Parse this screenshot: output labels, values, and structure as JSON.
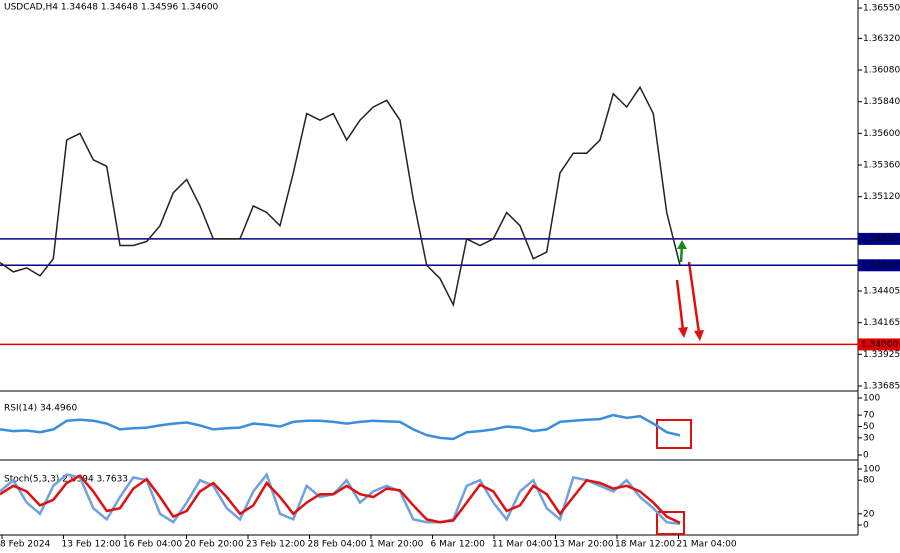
{
  "chart_data": [
    {
      "type": "line",
      "title": "USDCAD,H4 1.34648 1.34648 1.34596 1.34600",
      "ylim": [
        1.33647,
        1.36611
      ],
      "yticks": [
        {
          "value": 1.3655,
          "label": "1.36550"
        },
        {
          "value": 1.3632,
          "label": "1.36320"
        },
        {
          "value": 1.3608,
          "label": "1.36080"
        },
        {
          "value": 1.3584,
          "label": "1.35840"
        },
        {
          "value": 1.356,
          "label": "1.35600"
        },
        {
          "value": 1.3536,
          "label": "1.35360"
        },
        {
          "value": 1.3512,
          "label": "1.35120"
        },
        {
          "value": 1.34405,
          "label": "1.34405"
        },
        {
          "value": 1.34165,
          "label": "1.34165"
        },
        {
          "value": 1.33925,
          "label": "1.33925"
        },
        {
          "value": 1.33685,
          "label": "1.33685"
        }
      ],
      "levels": [
        {
          "value": 1.348,
          "label": "1.34800",
          "color": "#00008b"
        },
        {
          "value": 1.346,
          "label": "1.34600",
          "color": "#00008b"
        },
        {
          "value": 1.34,
          "label": "1.34000",
          "color": "#e00000"
        }
      ],
      "series": [
        {
          "color": "#222222",
          "values": [
            1.3462,
            1.3455,
            1.3458,
            1.3452,
            1.3465,
            1.3555,
            1.356,
            1.354,
            1.3535,
            1.3475,
            1.3475,
            1.3478,
            1.349,
            1.3515,
            1.3525,
            1.3505,
            1.348,
            1.348,
            1.348,
            1.3505,
            1.35,
            1.349,
            1.353,
            1.3575,
            1.357,
            1.3575,
            1.3555,
            1.357,
            1.358,
            1.3585,
            1.357,
            1.351,
            1.346,
            1.345,
            1.343,
            1.348,
            1.3475,
            1.348,
            1.35,
            1.349,
            1.3465,
            1.347,
            1.353,
            1.3545,
            1.3545,
            1.3555,
            1.359,
            1.358,
            1.3595,
            1.3575,
            1.35,
            1.346
          ]
        }
      ]
    },
    {
      "type": "line",
      "title": "RSI(14) 34.4960",
      "ylim": [
        0,
        100
      ],
      "yticks": [
        100,
        70,
        50,
        30,
        0
      ],
      "series": [
        {
          "color": "#3a8fdc",
          "values": [
            45,
            42,
            43,
            40,
            45,
            60,
            62,
            60,
            55,
            45,
            47,
            48,
            52,
            55,
            57,
            52,
            45,
            47,
            48,
            55,
            53,
            50,
            58,
            60,
            60,
            58,
            55,
            58,
            60,
            59,
            58,
            45,
            35,
            30,
            28,
            40,
            42,
            45,
            50,
            48,
            42,
            45,
            58,
            60,
            62,
            63,
            70,
            65,
            68,
            55,
            40,
            34.496
          ]
        }
      ]
    },
    {
      "type": "line",
      "title": "Stoch(5,3,3) 2.0394 3.7633",
      "ylim": [
        0,
        100
      ],
      "yticks": [
        100,
        80,
        20,
        0
      ],
      "xtick_labels": [
        "8 Feb 2024",
        "13 Feb 12:00",
        "16 Feb 04:00",
        "20 Feb 20:00",
        "23 Feb 12:00",
        "28 Feb 04:00",
        "1 Mar 20:00",
        "6 Mar 12:00",
        "11 Mar 04:00",
        "13 Mar 20:00",
        "18 Mar 12:00",
        "21 Mar 04:00"
      ],
      "series": [
        {
          "color": "#6fa0e0",
          "values": [
            60,
            80,
            40,
            20,
            70,
            90,
            85,
            30,
            10,
            50,
            85,
            80,
            20,
            5,
            40,
            80,
            70,
            30,
            10,
            60,
            90,
            20,
            10,
            70,
            50,
            55,
            80,
            40,
            60,
            70,
            60,
            10,
            5,
            5,
            10,
            70,
            80,
            40,
            10,
            60,
            80,
            30,
            10,
            85,
            80,
            70,
            60,
            80,
            50,
            30,
            5,
            2.0394
          ]
        },
        {
          "color": "#e01010",
          "values": [
            55,
            70,
            60,
            35,
            45,
            75,
            88,
            60,
            25,
            30,
            65,
            82,
            50,
            15,
            25,
            60,
            75,
            50,
            20,
            35,
            75,
            50,
            20,
            40,
            55,
            55,
            70,
            55,
            50,
            65,
            62,
            35,
            10,
            5,
            8,
            40,
            72,
            60,
            25,
            35,
            70,
            55,
            20,
            50,
            80,
            75,
            65,
            70,
            60,
            40,
            15,
            3.7633
          ]
        }
      ]
    }
  ]
}
